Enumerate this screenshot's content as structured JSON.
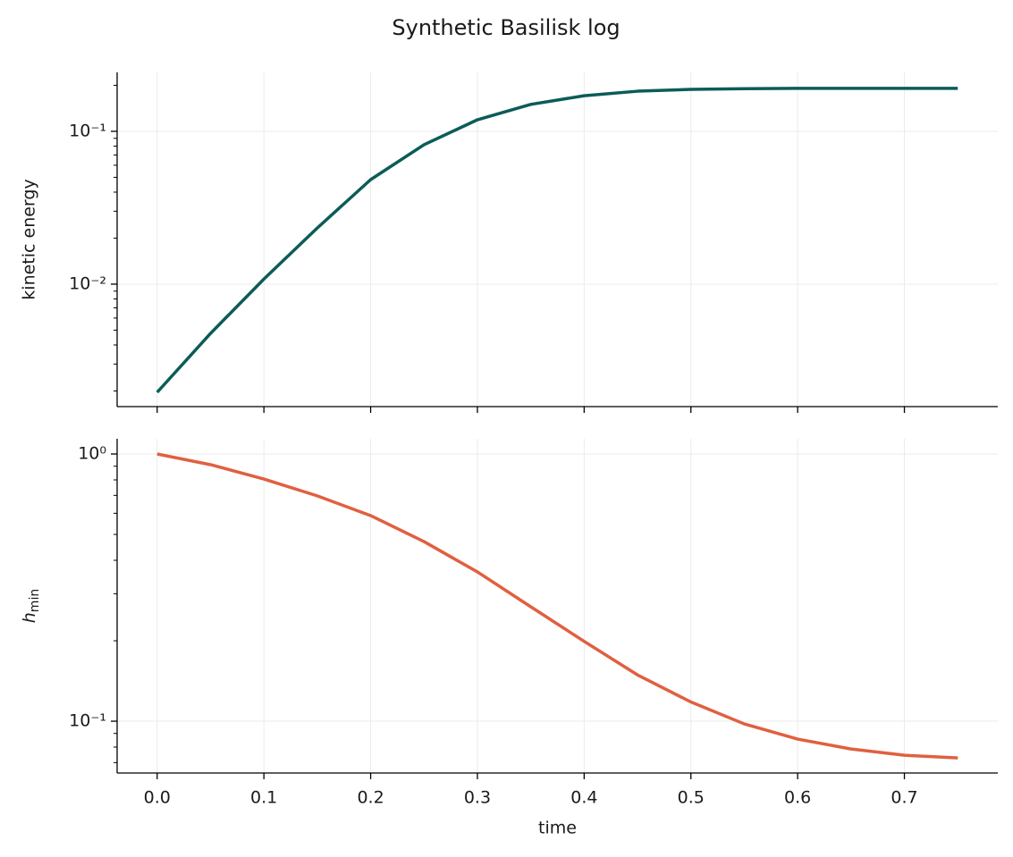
{
  "title": "Synthetic Basilisk log",
  "chart_data": [
    {
      "type": "line",
      "ylabel": "kinetic energy",
      "log_y": true,
      "grid": true,
      "x": [
        0,
        0.05,
        0.1,
        0.15,
        0.2,
        0.25,
        0.3,
        0.35,
        0.4,
        0.45,
        0.5,
        0.55,
        0.6,
        0.65,
        0.7,
        0.75
      ],
      "series": [
        {
          "name": "kinetic energy",
          "color": "#0b5c58",
          "values": [
            0.00196,
            0.00476,
            0.0108,
            0.0233,
            0.0483,
            0.0817,
            0.119,
            0.15,
            0.171,
            0.183,
            0.188,
            0.19,
            0.191,
            0.191,
            0.191,
            0.191
          ]
        }
      ],
      "ylim": [
        0.00158,
        0.243
      ],
      "yticks": [
        {
          "value": 0.01,
          "label": "10⁻²"
        },
        {
          "value": 0.1,
          "label": "10⁻¹"
        }
      ]
    },
    {
      "type": "line",
      "ylabel": [
        "h",
        "min"
      ],
      "xlabel": "time",
      "log_y": true,
      "grid": true,
      "x": [
        0,
        0.05,
        0.1,
        0.15,
        0.2,
        0.25,
        0.3,
        0.35,
        0.4,
        0.45,
        0.5,
        0.55,
        0.6,
        0.65,
        0.7,
        0.75
      ],
      "series": [
        {
          "name": "h_min",
          "color": "#e06040",
          "values": [
            1.0,
            0.912,
            0.806,
            0.697,
            0.588,
            0.47,
            0.362,
            0.268,
            0.199,
            0.149,
            0.118,
            0.0977,
            0.0857,
            0.0787,
            0.0746,
            0.0729
          ]
        }
      ],
      "xlim": [
        -0.0375,
        0.7875
      ],
      "xticks": [
        {
          "value": 0,
          "label": "0.0"
        },
        0.1,
        0.2,
        0.3,
        0.4,
        0.5,
        0.6,
        0.7
      ],
      "ylim": [
        0.064,
        1.14
      ],
      "yticks": [
        {
          "value": 0.1,
          "label": "10⁻¹"
        },
        {
          "value": 1,
          "label": "10⁰"
        }
      ]
    }
  ]
}
